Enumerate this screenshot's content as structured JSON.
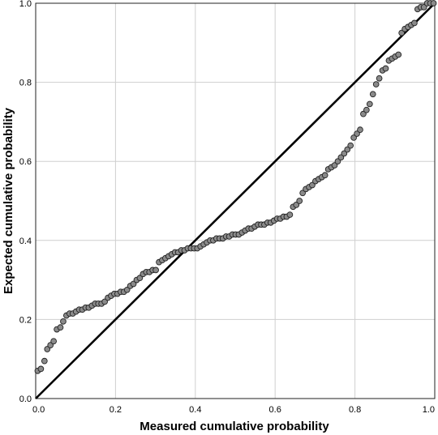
{
  "chart_data": {
    "type": "scatter",
    "title": "",
    "xlabel": "Measured cumulative probability",
    "ylabel": "Expected cumulative probability",
    "xlim": [
      0,
      1
    ],
    "ylim": [
      0,
      1
    ],
    "x_ticks": [
      "0.0",
      "0.2",
      "0.4",
      "0.6",
      "0.8",
      "1.0"
    ],
    "y_ticks": [
      "0.0",
      "0.2",
      "0.4",
      "0.6",
      "0.8",
      "1.0"
    ],
    "grid": true,
    "reference_line": {
      "x": [
        0,
        1
      ],
      "y": [
        0,
        1
      ]
    },
    "colors": {
      "point_fill": "#8a8a8a",
      "point_stroke": "#222222",
      "grid": "#cfcfcf",
      "line": "#000000"
    },
    "series": [
      {
        "x": [
          0.005,
          0.013,
          0.022,
          0.029,
          0.037,
          0.045,
          0.053,
          0.062,
          0.069,
          0.077,
          0.085,
          0.093,
          0.101,
          0.109,
          0.117,
          0.125,
          0.133,
          0.141,
          0.149,
          0.157,
          0.165,
          0.173,
          0.181,
          0.189,
          0.197,
          0.205,
          0.213,
          0.221,
          0.229,
          0.237,
          0.245,
          0.253,
          0.261,
          0.269,
          0.277,
          0.285,
          0.293,
          0.301,
          0.309,
          0.317,
          0.325,
          0.333,
          0.341,
          0.349,
          0.357,
          0.365,
          0.373,
          0.381,
          0.389,
          0.397,
          0.405,
          0.413,
          0.421,
          0.429,
          0.437,
          0.445,
          0.453,
          0.461,
          0.469,
          0.477,
          0.485,
          0.493,
          0.501,
          0.509,
          0.517,
          0.525,
          0.533,
          0.541,
          0.549,
          0.557,
          0.565,
          0.573,
          0.581,
          0.589,
          0.597,
          0.605,
          0.613,
          0.621,
          0.629,
          0.637,
          0.645,
          0.653,
          0.661,
          0.669,
          0.677,
          0.685,
          0.693,
          0.701,
          0.709,
          0.717,
          0.725,
          0.733,
          0.741,
          0.749,
          0.757,
          0.765,
          0.773,
          0.781,
          0.789,
          0.797,
          0.805,
          0.813,
          0.821,
          0.829,
          0.837,
          0.845,
          0.853,
          0.861,
          0.869,
          0.877,
          0.885,
          0.893,
          0.901,
          0.909,
          0.917,
          0.925,
          0.933,
          0.941,
          0.949,
          0.957,
          0.965,
          0.973,
          0.981,
          0.989,
          0.997
        ],
        "y": [
          0.07,
          0.075,
          0.095,
          0.125,
          0.135,
          0.145,
          0.175,
          0.18,
          0.195,
          0.21,
          0.215,
          0.215,
          0.22,
          0.225,
          0.225,
          0.23,
          0.23,
          0.235,
          0.24,
          0.24,
          0.24,
          0.245,
          0.255,
          0.26,
          0.265,
          0.265,
          0.27,
          0.27,
          0.275,
          0.285,
          0.29,
          0.3,
          0.305,
          0.315,
          0.32,
          0.32,
          0.325,
          0.325,
          0.345,
          0.35,
          0.355,
          0.36,
          0.365,
          0.37,
          0.37,
          0.375,
          0.375,
          0.38,
          0.38,
          0.38,
          0.38,
          0.385,
          0.39,
          0.395,
          0.4,
          0.4,
          0.405,
          0.405,
          0.405,
          0.41,
          0.41,
          0.415,
          0.415,
          0.415,
          0.42,
          0.425,
          0.43,
          0.43,
          0.435,
          0.44,
          0.44,
          0.44,
          0.445,
          0.445,
          0.45,
          0.455,
          0.455,
          0.46,
          0.46,
          0.465,
          0.485,
          0.49,
          0.5,
          0.52,
          0.53,
          0.535,
          0.54,
          0.55,
          0.555,
          0.56,
          0.565,
          0.58,
          0.585,
          0.59,
          0.6,
          0.61,
          0.62,
          0.63,
          0.64,
          0.66,
          0.67,
          0.68,
          0.72,
          0.73,
          0.745,
          0.77,
          0.795,
          0.81,
          0.83,
          0.835,
          0.855,
          0.86,
          0.865,
          0.87,
          0.925,
          0.935,
          0.94,
          0.945,
          0.95,
          0.985,
          0.99,
          0.99,
          1.0,
          1.0,
          1.0
        ]
      }
    ]
  }
}
